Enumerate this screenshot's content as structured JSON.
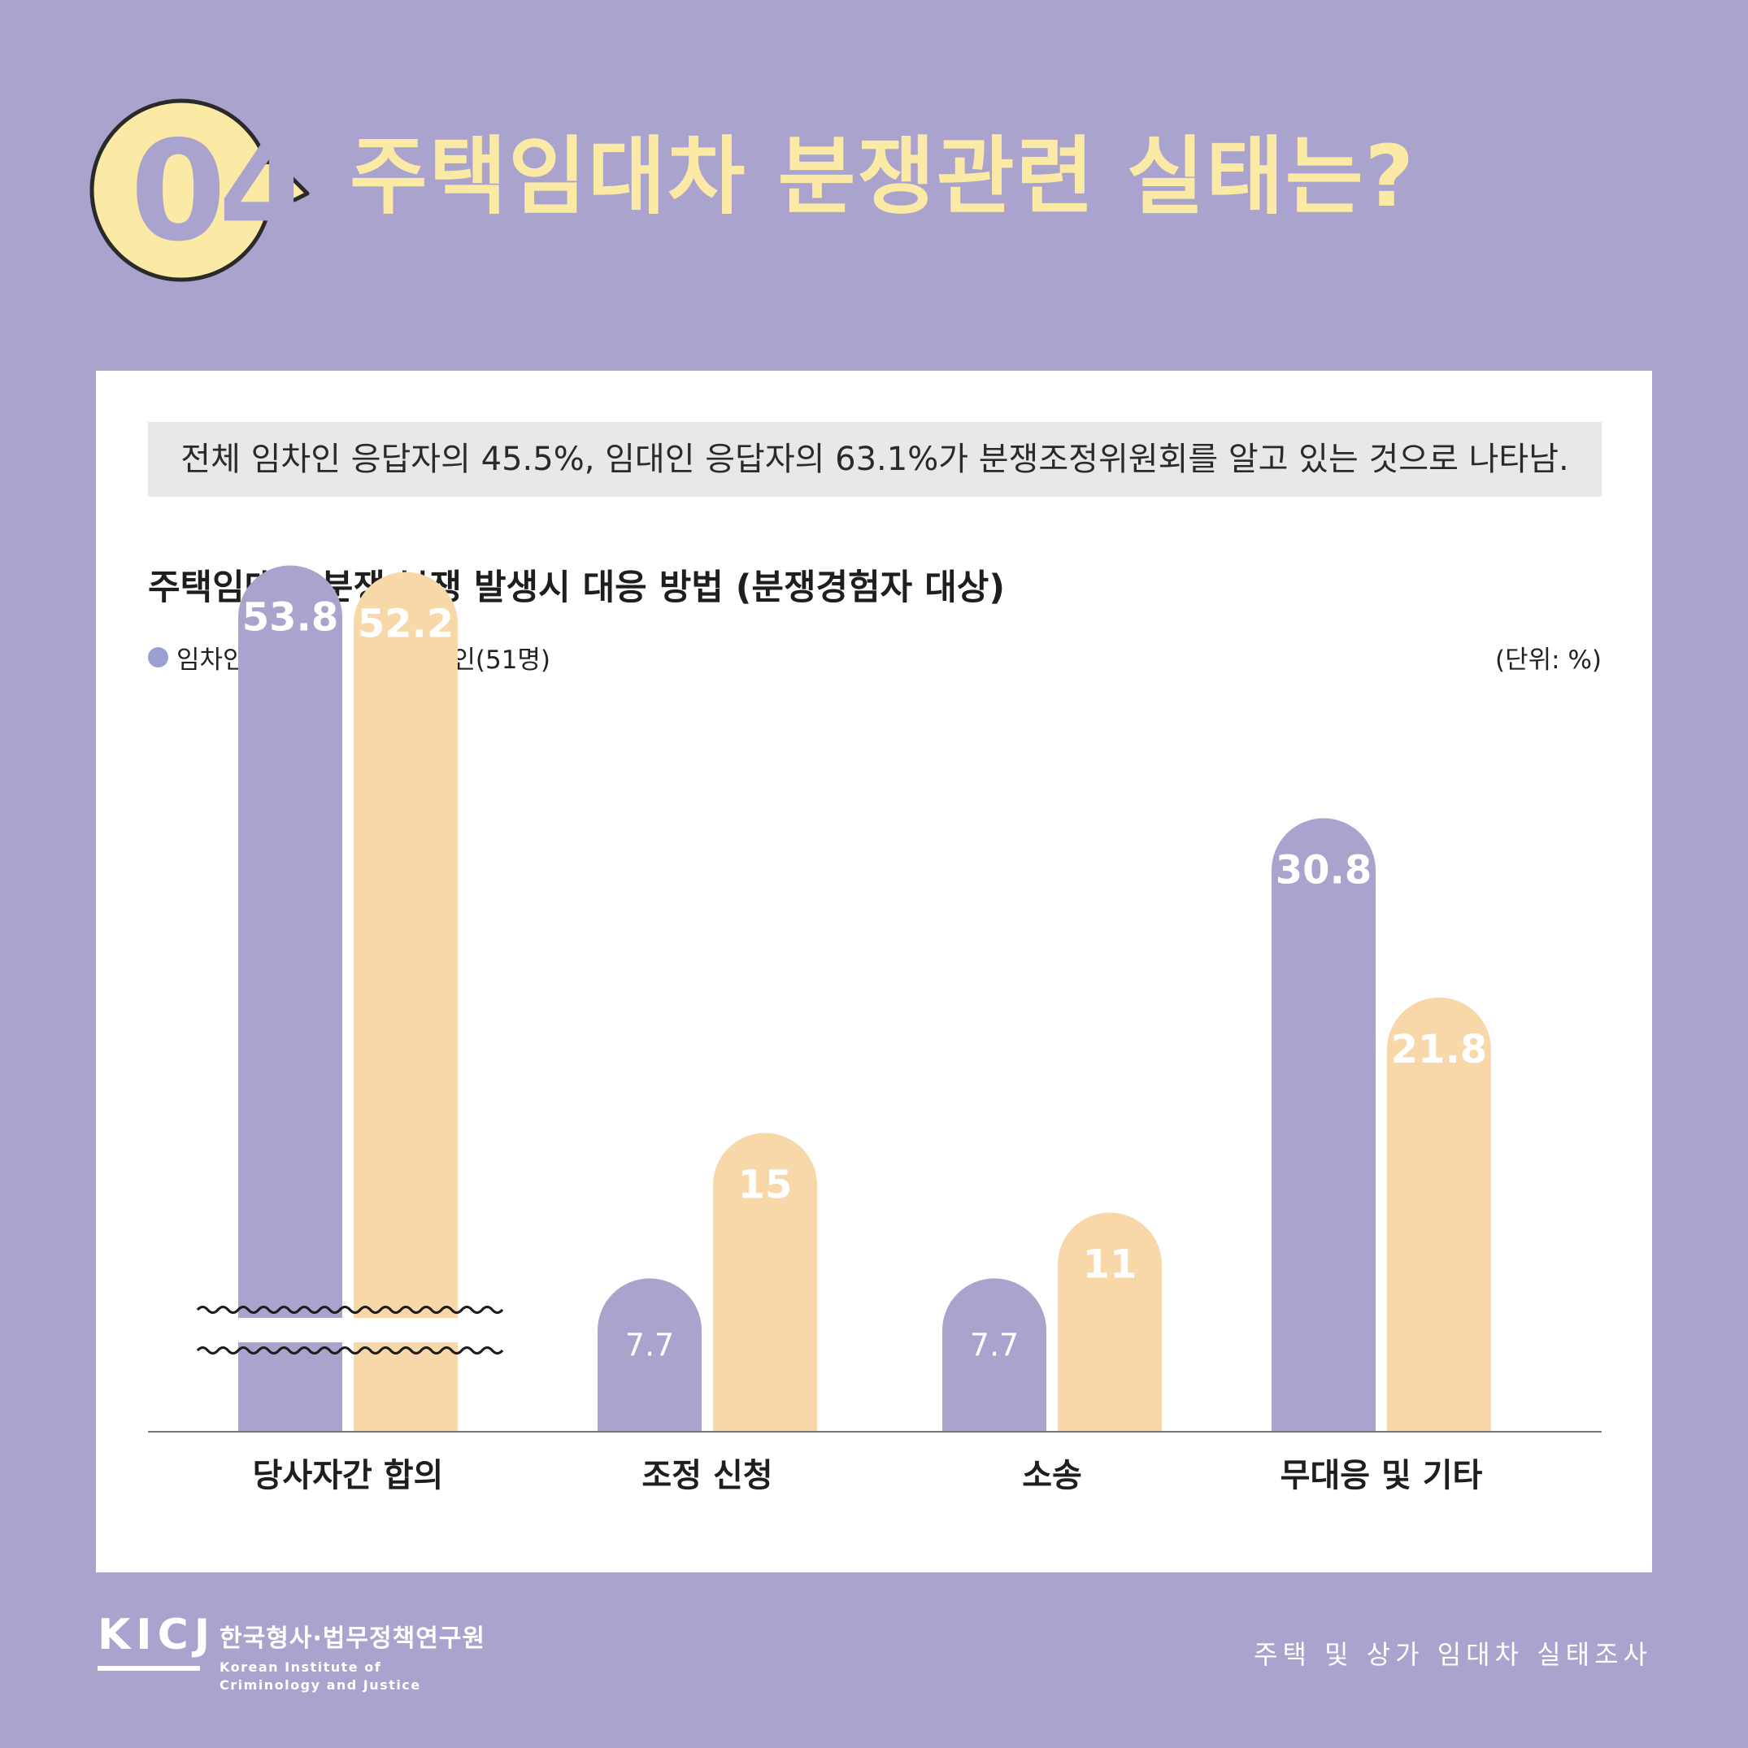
{
  "header": {
    "number": "04",
    "title": "주택임대차 분쟁관련 실태는?"
  },
  "summary": "전체 임차인 응답자의 45.5%, 임대인 응답자의 63.1%가 분쟁조정위원회를 알고 있는 것으로 나타남.",
  "chart_data": {
    "type": "bar",
    "title": "주택임대차 분쟁 분쟁 발생시 대응 방법 (분쟁경험자 대상)",
    "unit": "(단위: %)",
    "categories": [
      "당사자간 합의",
      "조정 신청",
      "소송",
      "무대응 및 기타"
    ],
    "series": [
      {
        "name": "임차인(143명)",
        "values": [
          53.8,
          7.7,
          7.7,
          30.8
        ],
        "labels": [
          "53.8",
          "7.7",
          "7.7",
          "30.8"
        ],
        "color": "#a9a3cd"
      },
      {
        "name": "임대인(51명)",
        "values": [
          52.2,
          15,
          11,
          21.8
        ],
        "labels": [
          "52.2",
          "15",
          "11",
          "21.8"
        ],
        "color": "#f8d7a8"
      }
    ],
    "axis_break": true,
    "legend_position": "top-left",
    "grid": false
  },
  "footer": {
    "logo": "KICJ",
    "org_ko": "한국형사·법무정책연구원",
    "org_en_1": "Korean Institute of",
    "org_en_2": "Criminology and Justice",
    "survey": "주택 및 상가 임대차 실태조사"
  },
  "colors": {
    "background": "#a9a3cd",
    "title_yellow": "#fbe9a6",
    "tenant": "#a9a3cd",
    "landlord": "#f8d7a8"
  }
}
